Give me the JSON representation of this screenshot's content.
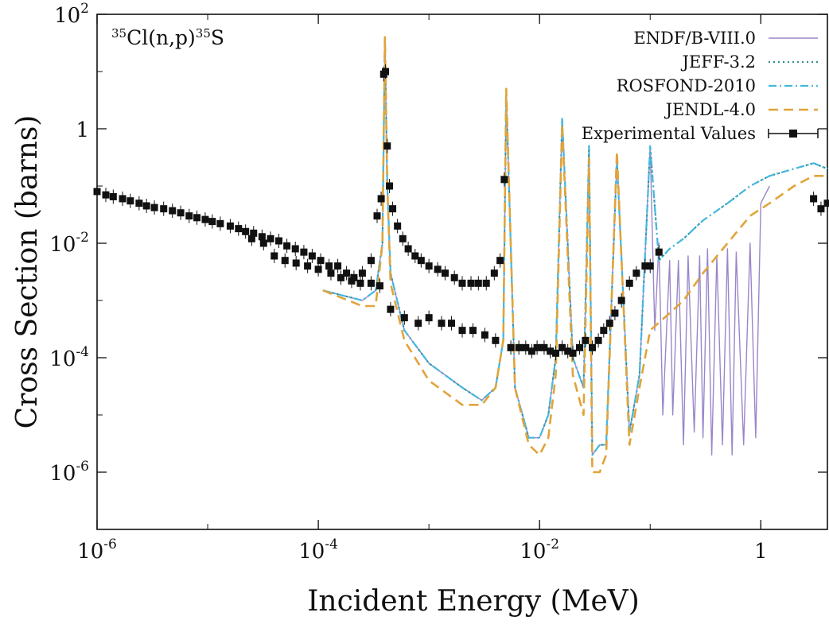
{
  "chart_data": {
    "type": "line",
    "annotation": "35Cl(n,p)35S",
    "xlabel": "Incident Energy (MeV)",
    "ylabel": "Cross Section (barns)",
    "x_scale": "log",
    "y_scale": "log",
    "xlim": [
      1e-06,
      4
    ],
    "ylim": [
      1e-07,
      100
    ],
    "x_ticks": [
      {
        "value": 1e-06,
        "base": "10",
        "exp": "-6"
      },
      {
        "value": 0.0001,
        "base": "10",
        "exp": "-4"
      },
      {
        "value": 0.01,
        "base": "10",
        "exp": "-2"
      },
      {
        "value": 1,
        "base": "1",
        "exp": ""
      }
    ],
    "y_ticks": [
      {
        "value": 100,
        "base": "10",
        "exp": "2"
      },
      {
        "value": 1,
        "base": "1",
        "exp": ""
      },
      {
        "value": 0.01,
        "base": "10",
        "exp": "-2"
      },
      {
        "value": 0.0001,
        "base": "10",
        "exp": "-4"
      },
      {
        "value": 1e-06,
        "base": "10",
        "exp": "-6"
      }
    ],
    "legend_position": "top-right",
    "series": [
      {
        "name": "ENDF/B-VIII.0",
        "color": "#9b86c9",
        "style": "solid",
        "x": [
          0.00011,
          0.00025,
          0.00033,
          0.00038,
          0.0004,
          0.00042,
          0.00045,
          0.0006,
          0.001,
          0.002,
          0.003,
          0.004,
          0.0047,
          0.005,
          0.006,
          0.008,
          0.01,
          0.012,
          0.014,
          0.016,
          0.02,
          0.025,
          0.028,
          0.03,
          0.035,
          0.04,
          0.05,
          0.065,
          0.08,
          0.1,
          0.11,
          0.12,
          0.13,
          0.15,
          0.16,
          0.18,
          0.2,
          0.22,
          0.25,
          0.28,
          0.3,
          0.33,
          0.36,
          0.4,
          0.45,
          0.5,
          0.55,
          0.6,
          0.7,
          0.8,
          0.9,
          1.0,
          1.2
        ],
        "values": [
          0.0015,
          0.001,
          0.0015,
          0.01,
          40,
          0.1,
          0.003,
          0.0003,
          8e-05,
          3e-05,
          1.8e-05,
          3e-05,
          0.0002,
          4,
          3e-05,
          4e-06,
          4e-06,
          1e-05,
          0.0001,
          1.5,
          0.0001,
          3e-05,
          0.5,
          2e-06,
          3e-06,
          3e-06,
          0.3,
          5e-06,
          5e-05,
          0.5,
          0.0003,
          0.01,
          1e-05,
          0.005,
          1e-05,
          0.005,
          3e-06,
          0.006,
          5e-06,
          0.006,
          4e-06,
          0.008,
          2e-06,
          0.006,
          3e-06,
          0.008,
          2e-06,
          0.007,
          3e-06,
          0.01,
          4e-06,
          0.05,
          0.1
        ]
      },
      {
        "name": "JEFF-3.2",
        "color": "#2f8f8f",
        "style": "dotted",
        "x": [
          0.00011,
          0.00025,
          0.00033,
          0.00038,
          0.0004,
          0.00042,
          0.00045,
          0.0006,
          0.001,
          0.002,
          0.003,
          0.004,
          0.0047,
          0.005,
          0.006,
          0.008,
          0.01,
          0.012,
          0.014,
          0.016,
          0.02,
          0.025,
          0.028,
          0.03,
          0.035,
          0.04,
          0.05,
          0.065,
          0.08,
          0.1,
          0.12,
          0.15,
          0.2,
          0.3,
          0.5,
          0.8,
          1.2,
          2,
          3,
          4
        ],
        "values": [
          0.0015,
          0.001,
          0.0015,
          0.01,
          40,
          0.1,
          0.003,
          0.0003,
          8e-05,
          3e-05,
          1.8e-05,
          3e-05,
          0.0002,
          4,
          3e-05,
          4e-06,
          4e-06,
          1e-05,
          0.0001,
          1.5,
          0.0001,
          3e-05,
          0.5,
          2e-06,
          3e-06,
          3e-06,
          0.3,
          5e-06,
          5e-05,
          0.5,
          0.005,
          0.008,
          0.012,
          0.025,
          0.05,
          0.1,
          0.15,
          0.2,
          0.25,
          0.2
        ]
      },
      {
        "name": "ROSFOND-2010",
        "color": "#45b8e0",
        "style": "dash-dot",
        "x": [
          0.00011,
          0.00025,
          0.00033,
          0.00038,
          0.0004,
          0.00042,
          0.00045,
          0.0006,
          0.001,
          0.002,
          0.003,
          0.004,
          0.0047,
          0.005,
          0.006,
          0.008,
          0.01,
          0.012,
          0.014,
          0.016,
          0.02,
          0.025,
          0.028,
          0.03,
          0.035,
          0.04,
          0.05,
          0.065,
          0.08,
          0.1,
          0.12,
          0.15,
          0.2,
          0.3,
          0.5,
          0.8,
          1.2,
          2,
          3,
          4
        ],
        "values": [
          0.0015,
          0.001,
          0.0015,
          0.01,
          40,
          0.1,
          0.003,
          0.0003,
          8e-05,
          3e-05,
          1.8e-05,
          3e-05,
          0.0002,
          4,
          3e-05,
          4e-06,
          4e-06,
          1e-05,
          0.0001,
          1.5,
          0.0001,
          3e-05,
          0.5,
          2e-06,
          3e-06,
          3e-06,
          0.3,
          5e-06,
          5e-05,
          0.5,
          0.005,
          0.008,
          0.012,
          0.025,
          0.05,
          0.1,
          0.15,
          0.2,
          0.25,
          0.2
        ]
      },
      {
        "name": "JENDL-4.0",
        "color": "#e0a43a",
        "style": "dashed",
        "x": [
          0.00011,
          0.00025,
          0.00033,
          0.00038,
          0.0004,
          0.00042,
          0.00045,
          0.0006,
          0.001,
          0.002,
          0.003,
          0.004,
          0.0047,
          0.005,
          0.006,
          0.008,
          0.01,
          0.012,
          0.014,
          0.016,
          0.02,
          0.025,
          0.028,
          0.03,
          0.035,
          0.04,
          0.05,
          0.065,
          0.08,
          0.1,
          0.15,
          0.2,
          0.3,
          0.5,
          0.8,
          1.2,
          2,
          3,
          4
        ],
        "values": [
          0.0015,
          0.0008,
          0.0008,
          0.01,
          40,
          0.1,
          0.002,
          0.0002,
          4e-05,
          1.5e-05,
          1.5e-05,
          3e-05,
          0.0002,
          5,
          3e-05,
          3e-06,
          2e-06,
          4e-06,
          5e-05,
          1.2,
          5e-05,
          1e-05,
          0.3,
          1e-06,
          1e-06,
          2e-06,
          0.4,
          3e-06,
          3e-05,
          0.0003,
          0.0006,
          0.001,
          0.003,
          0.01,
          0.03,
          0.05,
          0.1,
          0.15,
          0.15
        ]
      }
    ],
    "experimental": {
      "name": "Experimental Values",
      "color": "#111111",
      "x": [
        1e-06,
        1.2e-06,
        1.4e-06,
        1.7e-06,
        2e-06,
        2.4e-06,
        2.8e-06,
        3.3e-06,
        4e-06,
        4.8e-06,
        5.7e-06,
        6.8e-06,
        8e-06,
        9.5e-06,
        1.1e-05,
        1.3e-05,
        1.6e-05,
        1.9e-05,
        2.2e-05,
        2.6e-05,
        3.1e-05,
        3.7e-05,
        4.4e-05,
        5.2e-05,
        6.2e-05,
        7.4e-05,
        8.8e-05,
        0.000105,
        0.000125,
        0.00015,
        0.00018,
        0.00021,
        0.00025,
        0.0003,
        0.00034,
        0.00037,
        0.00039,
        0.000405,
        0.00042,
        0.00044,
        0.00047,
        0.00052,
        0.00058,
        0.00065,
        0.00075,
        0.00085,
        0.001,
        0.0012,
        0.0014,
        0.0017,
        0.002,
        0.0024,
        0.0028,
        0.0033,
        0.0039,
        0.0044,
        0.0048,
        2.5e-05,
        3.2e-05,
        4e-05,
        5e-05,
        6.3e-05,
        8e-05,
        0.0001,
        0.00013,
        0.00016,
        0.0002,
        0.00024,
        0.0003,
        0.00036,
        0.00045,
        0.0006,
        0.0008,
        0.001,
        0.0013,
        0.0016,
        0.002,
        0.0025,
        0.0032,
        0.004,
        0.0055,
        0.0065,
        0.0075,
        0.0085,
        0.0095,
        0.011,
        0.0125,
        0.014,
        0.016,
        0.018,
        0.02,
        0.023,
        0.026,
        0.03,
        0.034,
        0.038,
        0.043,
        0.048,
        0.055,
        0.065,
        0.075,
        0.09,
        0.1,
        0.12,
        3.0,
        3.5,
        4.0
      ],
      "values": [
        0.08,
        0.07,
        0.065,
        0.06,
        0.055,
        0.05,
        0.045,
        0.042,
        0.04,
        0.037,
        0.034,
        0.03,
        0.028,
        0.026,
        0.024,
        0.022,
        0.02,
        0.018,
        0.016,
        0.015,
        0.013,
        0.012,
        0.011,
        0.009,
        0.008,
        0.007,
        0.006,
        0.005,
        0.004,
        0.004,
        0.003,
        0.0025,
        0.003,
        0.005,
        0.03,
        0.06,
        9,
        10,
        0.5,
        0.1,
        0.04,
        0.02,
        0.012,
        0.008,
        0.006,
        0.005,
        0.004,
        0.0035,
        0.003,
        0.0025,
        0.002,
        0.002,
        0.002,
        0.002,
        0.003,
        0.005,
        0.13,
        0.012,
        0.01,
        0.006,
        0.005,
        0.0045,
        0.004,
        0.0035,
        0.003,
        0.0025,
        0.0022,
        0.002,
        0.002,
        0.0018,
        0.0007,
        0.0005,
        0.0004,
        0.0005,
        0.0004,
        0.0004,
        0.0003,
        0.0003,
        0.00025,
        0.0002,
        0.00015,
        0.00015,
        0.00015,
        0.00013,
        0.00015,
        0.00015,
        0.00013,
        0.00012,
        0.00015,
        0.00013,
        0.00012,
        0.00015,
        0.0002,
        0.00015,
        0.0002,
        0.0003,
        0.0004,
        0.0006,
        0.001,
        0.002,
        0.003,
        0.004,
        0.004,
        0.007,
        0.06,
        0.04,
        0.05
      ]
    }
  }
}
